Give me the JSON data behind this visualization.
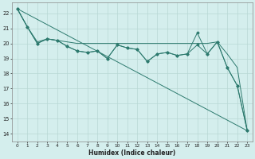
{
  "title": "",
  "xlabel": "Humidex (Indice chaleur)",
  "bg_color": "#d4eeed",
  "grid_color": "#b8d8d4",
  "line_color": "#2d7a6e",
  "xlim": [
    -0.5,
    23.5
  ],
  "ylim": [
    13.5,
    22.7
  ],
  "xticks": [
    0,
    1,
    2,
    3,
    4,
    5,
    6,
    7,
    8,
    9,
    10,
    11,
    12,
    13,
    14,
    15,
    16,
    17,
    18,
    19,
    20,
    21,
    22,
    23
  ],
  "yticks": [
    14,
    15,
    16,
    17,
    18,
    19,
    20,
    21,
    22
  ],
  "diag": {
    "x": [
      0,
      23
    ],
    "y": [
      22.3,
      14.2
    ]
  },
  "line_wavy": {
    "x": [
      0,
      1,
      2,
      3,
      4,
      5,
      6,
      7,
      8,
      9,
      10,
      11,
      12,
      13,
      14,
      15,
      16,
      17,
      18,
      19,
      20,
      21,
      22,
      23
    ],
    "y": [
      22.3,
      21.1,
      20.0,
      20.3,
      20.2,
      19.8,
      19.5,
      19.4,
      19.5,
      19.0,
      19.9,
      19.7,
      19.6,
      18.8,
      19.3,
      19.4,
      19.2,
      19.3,
      19.9,
      19.3,
      20.1,
      18.4,
      17.2,
      14.2
    ]
  },
  "line_flat": {
    "x": [
      0,
      1,
      2,
      3,
      4,
      5,
      6,
      7,
      8,
      9,
      10,
      11,
      12,
      13,
      14,
      15,
      16,
      17,
      18,
      19,
      20,
      21,
      22,
      23
    ],
    "y": [
      22.3,
      21.1,
      20.1,
      20.3,
      20.2,
      20.1,
      20.0,
      20.0,
      20.0,
      20.0,
      20.0,
      20.0,
      20.0,
      20.0,
      20.0,
      20.0,
      20.0,
      20.0,
      20.0,
      20.0,
      20.1,
      19.3,
      18.4,
      14.2
    ]
  },
  "line_marker": {
    "x": [
      0,
      1,
      2,
      3,
      4,
      5,
      6,
      7,
      8,
      9,
      10,
      11,
      12,
      13,
      14,
      15,
      16,
      17,
      18,
      19,
      20,
      21,
      22,
      23
    ],
    "y": [
      22.3,
      21.1,
      20.0,
      20.3,
      20.2,
      19.8,
      19.5,
      19.4,
      19.5,
      19.0,
      19.9,
      19.7,
      19.6,
      18.8,
      19.3,
      19.4,
      19.2,
      19.3,
      20.7,
      19.3,
      20.1,
      18.4,
      17.2,
      14.2
    ]
  }
}
